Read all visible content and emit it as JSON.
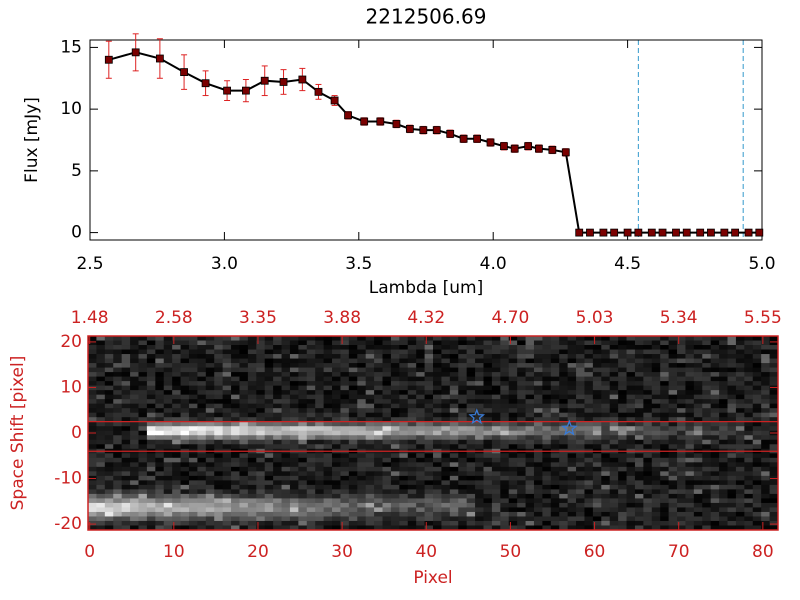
{
  "chart_data": [
    {
      "type": "line",
      "title": "2212506.69",
      "xlabel": "Lambda [um]",
      "ylabel": "Flux [mJy]",
      "x": [
        2.57,
        2.67,
        2.76,
        2.85,
        2.93,
        3.01,
        3.08,
        3.15,
        3.22,
        3.29,
        3.35,
        3.41,
        3.46,
        3.52,
        3.58,
        3.64,
        3.69,
        3.74,
        3.79,
        3.84,
        3.89,
        3.94,
        3.99,
        4.04,
        4.08,
        4.13,
        4.17,
        4.22,
        4.27,
        4.32,
        4.36,
        4.41,
        4.45,
        4.5,
        4.54,
        4.59,
        4.63,
        4.68,
        4.72,
        4.77,
        4.81,
        4.86,
        4.9,
        4.95,
        4.99
      ],
      "values": [
        14.0,
        14.6,
        14.1,
        13.0,
        12.1,
        11.5,
        11.5,
        12.3,
        12.2,
        12.4,
        11.4,
        10.7,
        9.5,
        9.0,
        9.0,
        8.8,
        8.4,
        8.3,
        8.3,
        8.0,
        7.6,
        7.6,
        7.3,
        7.0,
        6.8,
        7.0,
        6.8,
        6.7,
        6.5,
        0,
        0,
        0,
        0,
        0,
        0,
        0,
        0,
        0,
        0,
        0,
        0,
        0,
        0,
        0,
        0
      ],
      "errors": [
        1.5,
        1.5,
        1.6,
        1.4,
        1.0,
        0.8,
        0.9,
        1.2,
        1.0,
        0.9,
        0.6,
        0.4,
        0.3,
        0.3,
        0.3,
        0.3,
        0.3,
        0.3,
        0.3,
        0.3,
        0.3,
        0.3,
        0.3,
        0.3,
        0.3,
        0.3,
        0.3,
        0.3,
        0.3,
        0.1,
        0.1,
        0.1,
        0.1,
        0.1,
        0.1,
        0.1,
        0.1,
        0.1,
        0.1,
        0.1,
        0.1,
        0.1,
        0.1,
        0.1,
        0.1
      ],
      "color": "#000000",
      "marker_color": "#7a0000",
      "error_color": "#dd2222",
      "xlim": [
        2.5,
        5.0
      ],
      "ylim": [
        -0.6,
        15.6
      ],
      "xticks": [
        2.5,
        {
          "value": 3.0,
          "label": "3.0"
        },
        3.5,
        {
          "value": 4.0,
          "label": "4.0"
        },
        4.5,
        {
          "value": 5.0,
          "label": "5.0"
        }
      ],
      "yticks": [
        0,
        5,
        10,
        15
      ],
      "vlines": [
        4.54,
        4.93
      ],
      "vline_color": "#3399cc"
    },
    {
      "type": "image",
      "xlabel": "Pixel",
      "ylabel": "Space Shift [pixel]",
      "xlim": [
        -0.2,
        81.8
      ],
      "ylim": [
        -21.3,
        21.3
      ],
      "xticks": [
        0,
        10,
        20,
        30,
        40,
        50,
        60,
        70,
        80
      ],
      "yticks": [
        -20,
        -10,
        0,
        10,
        20
      ],
      "top_xticks": [
        {
          "value": 0,
          "label": "1.48"
        },
        {
          "value": 10,
          "label": "2.58"
        },
        {
          "value": 20,
          "label": "3.35"
        },
        {
          "value": 30,
          "label": "3.88"
        },
        {
          "value": 40,
          "label": "4.32"
        },
        {
          "value": 50,
          "label": "4.70"
        },
        {
          "value": 60,
          "label": "5.03"
        },
        {
          "value": 70,
          "label": "5.34"
        },
        {
          "value": 80,
          "label": "5.55"
        }
      ],
      "hlines": [
        2.5,
        -4
      ],
      "axis_color": "#cc2222",
      "stars": {
        "x": [
          46,
          57
        ],
        "y": [
          3.5,
          1
        ]
      },
      "star_color": "#3a7bd5"
    }
  ]
}
